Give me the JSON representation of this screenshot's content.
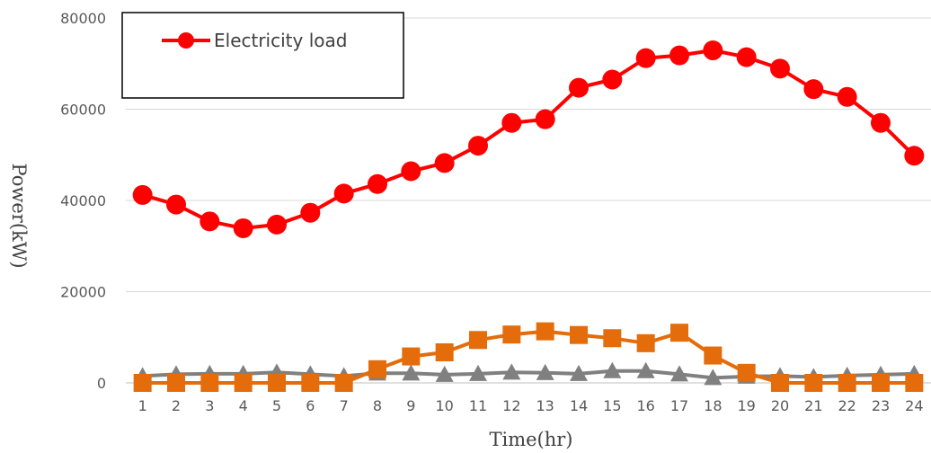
{
  "chart_data": {
    "type": "line",
    "title": "",
    "xlabel": "Time(hr)",
    "ylabel": "Power(kW)",
    "ylim": [
      0,
      80000
    ],
    "yticks": [
      0,
      20000,
      40000,
      60000,
      80000
    ],
    "grid": true,
    "legend_position": "top-left",
    "categories": [
      "1",
      "2",
      "3",
      "4",
      "5",
      "6",
      "7",
      "8",
      "9",
      "10",
      "11",
      "12",
      "13",
      "14",
      "15",
      "16",
      "17",
      "18",
      "19",
      "20",
      "21",
      "22",
      "23",
      "24"
    ],
    "series": [
      {
        "name": "Electricity load",
        "color": "#FF0000",
        "marker": "circle",
        "values": [
          41200,
          39100,
          35400,
          33900,
          34700,
          37300,
          41500,
          43600,
          46400,
          48200,
          52000,
          57000,
          57800,
          64700,
          66500,
          71200,
          71800,
          72900,
          71400,
          68900,
          64400,
          62700,
          57000,
          49800
        ]
      },
      {
        "color": "#E46C0A",
        "marker": "square",
        "values": [
          0,
          0,
          0,
          0,
          0,
          0,
          0,
          3000,
          5800,
          6700,
          9400,
          10600,
          11300,
          10500,
          9800,
          8700,
          11000,
          6000,
          2200,
          0,
          0,
          0,
          0,
          0
        ]
      },
      {
        "color": "#808080",
        "marker": "triangle",
        "values": [
          1500,
          1900,
          2000,
          2000,
          2300,
          1900,
          1500,
          2100,
          2100,
          1800,
          2000,
          2300,
          2200,
          2000,
          2600,
          2600,
          1900,
          1100,
          1400,
          1500,
          1300,
          1600,
          1800,
          2000
        ]
      }
    ]
  }
}
